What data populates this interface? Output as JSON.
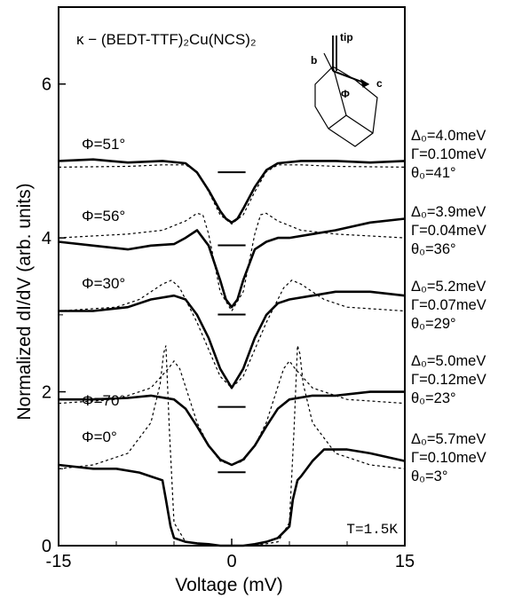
{
  "chart_data": {
    "type": "line",
    "title": "κ − (BEDT-TTF)₂Cu(NCS)₂",
    "xlabel": "Voltage (mV)",
    "ylabel": "Normalized dI/dV (arb. units)",
    "xlim": [
      -15,
      15
    ],
    "ylim": [
      0,
      7
    ],
    "x_ticks": [
      "-15",
      "0",
      "15"
    ],
    "y_ticks": [
      "0",
      "2",
      "4",
      "6"
    ],
    "annotation_temperature": "T=1.5K",
    "inset": {
      "labels": [
        "b",
        "c",
        "tip",
        "Φ"
      ]
    },
    "series": [
      {
        "label": "Φ=51°",
        "params": [
          "Δ₀=4.0meV",
          "Γ=0.10meV",
          "θ₀=41°"
        ],
        "experiment": {
          "x": [
            -15,
            -12,
            -9,
            -6,
            -4,
            -3,
            -2,
            -1,
            -0.5,
            0,
            0.5,
            1,
            2,
            3,
            4,
            6,
            9,
            12,
            15
          ],
          "y": [
            5.0,
            5.02,
            4.98,
            5.0,
            4.97,
            4.85,
            4.62,
            4.35,
            4.25,
            4.2,
            4.25,
            4.38,
            4.66,
            4.88,
            4.97,
            5.0,
            5.0,
            4.98,
            5.0
          ]
        },
        "theory": {
          "x": [
            -15,
            -9,
            -6,
            -4,
            -3,
            -2,
            -1,
            0,
            1,
            2,
            3,
            4,
            6,
            9,
            15
          ],
          "y": [
            4.92,
            4.93,
            4.95,
            4.95,
            4.86,
            4.6,
            4.3,
            4.18,
            4.3,
            4.6,
            4.86,
            4.95,
            4.95,
            4.93,
            4.92
          ]
        },
        "zero_level": 4.9
      },
      {
        "label": "Φ=56°",
        "params": [
          "Δ₀=3.9meV",
          "Γ=0.04meV",
          "θ₀=36°"
        ],
        "experiment": {
          "x": [
            -15,
            -12,
            -9,
            -7,
            -5,
            -4,
            -3,
            -2,
            -1,
            -0.5,
            0,
            0.5,
            1,
            2,
            3,
            4,
            5,
            7,
            9,
            12,
            15
          ],
          "y": [
            3.95,
            3.9,
            3.85,
            3.9,
            3.92,
            4.0,
            4.1,
            3.9,
            3.45,
            3.2,
            3.1,
            3.2,
            3.45,
            3.85,
            3.95,
            4.0,
            4.0,
            4.05,
            4.1,
            4.2,
            4.25
          ]
        },
        "theory": {
          "x": [
            -15,
            -9,
            -6,
            -4,
            -3,
            -2.5,
            -2,
            -1,
            0,
            1,
            2,
            2.5,
            3,
            4,
            6,
            9,
            15
          ],
          "y": [
            4.0,
            4.05,
            4.1,
            4.22,
            4.32,
            4.3,
            4.05,
            3.3,
            3.05,
            3.3,
            4.05,
            4.3,
            4.32,
            4.22,
            4.1,
            4.05,
            4.0
          ]
        },
        "zero_level": 3.95
      },
      {
        "label": "Φ=30°",
        "params": [
          "Δ₀=5.2meV",
          "Γ=0.07meV",
          "θ₀=29°"
        ],
        "experiment": {
          "x": [
            -15,
            -12,
            -9,
            -7,
            -5,
            -4,
            -3,
            -2,
            -1,
            0,
            1,
            2,
            3,
            4,
            5,
            7,
            9,
            12,
            15
          ],
          "y": [
            3.05,
            3.05,
            3.1,
            3.2,
            3.25,
            3.2,
            3.0,
            2.7,
            2.3,
            2.05,
            2.3,
            2.7,
            3.0,
            3.15,
            3.2,
            3.25,
            3.3,
            3.3,
            3.25
          ]
        },
        "theory": {
          "x": [
            -15,
            -10,
            -8,
            -6,
            -5.2,
            -4.5,
            -3,
            -2,
            -1,
            0,
            1,
            2,
            3,
            4.5,
            5.2,
            6,
            8,
            10,
            15
          ],
          "y": [
            3.05,
            3.1,
            3.2,
            3.4,
            3.45,
            3.35,
            2.9,
            2.55,
            2.2,
            2.05,
            2.2,
            2.55,
            2.9,
            3.35,
            3.45,
            3.4,
            3.2,
            3.1,
            3.05
          ]
        },
        "zero_level": 3.05
      },
      {
        "label": "Φ=70°",
        "params": [
          "Δ₀=5.0meV",
          "Γ=0.12meV",
          "θ₀=23°"
        ],
        "experiment": {
          "x": [
            -15,
            -12,
            -9,
            -7,
            -5,
            -4,
            -3,
            -2,
            -1,
            0,
            1,
            2,
            3,
            4,
            5,
            7,
            9,
            12,
            15
          ],
          "y": [
            1.9,
            1.9,
            1.92,
            1.95,
            1.9,
            1.78,
            1.55,
            1.3,
            1.12,
            1.05,
            1.12,
            1.3,
            1.55,
            1.78,
            1.9,
            1.95,
            1.95,
            2.0,
            2.0
          ]
        },
        "theory": {
          "x": [
            -15,
            -10,
            -7,
            -5.5,
            -5,
            -4.5,
            -3,
            -2,
            -1,
            0,
            1,
            2,
            3,
            4.5,
            5,
            5.5,
            7,
            10,
            15
          ],
          "y": [
            1.85,
            1.9,
            2.05,
            2.3,
            2.4,
            2.3,
            1.6,
            1.3,
            1.1,
            1.05,
            1.1,
            1.3,
            1.6,
            2.3,
            2.4,
            2.3,
            2.05,
            1.9,
            1.85
          ]
        },
        "zero_level": 1.85
      },
      {
        "label": "Φ=0°",
        "params": [
          "Δ₀=5.7meV",
          "Γ=0.10meV",
          "θ₀=3°"
        ],
        "experiment": {
          "x": [
            -15,
            -12,
            -10,
            -8,
            -7,
            -6,
            -5.7,
            -5.3,
            -5,
            -4,
            -3,
            -2,
            -1,
            0,
            1,
            2,
            3,
            4,
            5,
            5.3,
            5.7,
            6,
            7,
            8,
            10,
            12,
            15
          ],
          "y": [
            1.05,
            1.0,
            1.0,
            0.95,
            0.9,
            0.85,
            0.6,
            0.25,
            0.1,
            0.05,
            0.03,
            0.02,
            0.0,
            0.0,
            0.0,
            0.02,
            0.05,
            0.1,
            0.25,
            0.6,
            0.85,
            0.9,
            1.1,
            1.25,
            1.25,
            1.2,
            1.1
          ]
        },
        "theory": {
          "x": [
            -15,
            -12,
            -9,
            -7,
            -6.2,
            -5.9,
            -5.7,
            -5.4,
            -5,
            -4,
            -2,
            0,
            2,
            4,
            5,
            5.4,
            5.7,
            5.9,
            6.2,
            7,
            9,
            12,
            15
          ],
          "y": [
            1.0,
            1.05,
            1.2,
            1.6,
            2.1,
            2.5,
            2.6,
            1.5,
            0.3,
            0.05,
            0.0,
            0.0,
            0.0,
            0.05,
            0.3,
            1.5,
            2.6,
            2.5,
            2.1,
            1.6,
            1.2,
            1.05,
            1.0
          ]
        },
        "zero_level": 1.0
      }
    ]
  }
}
